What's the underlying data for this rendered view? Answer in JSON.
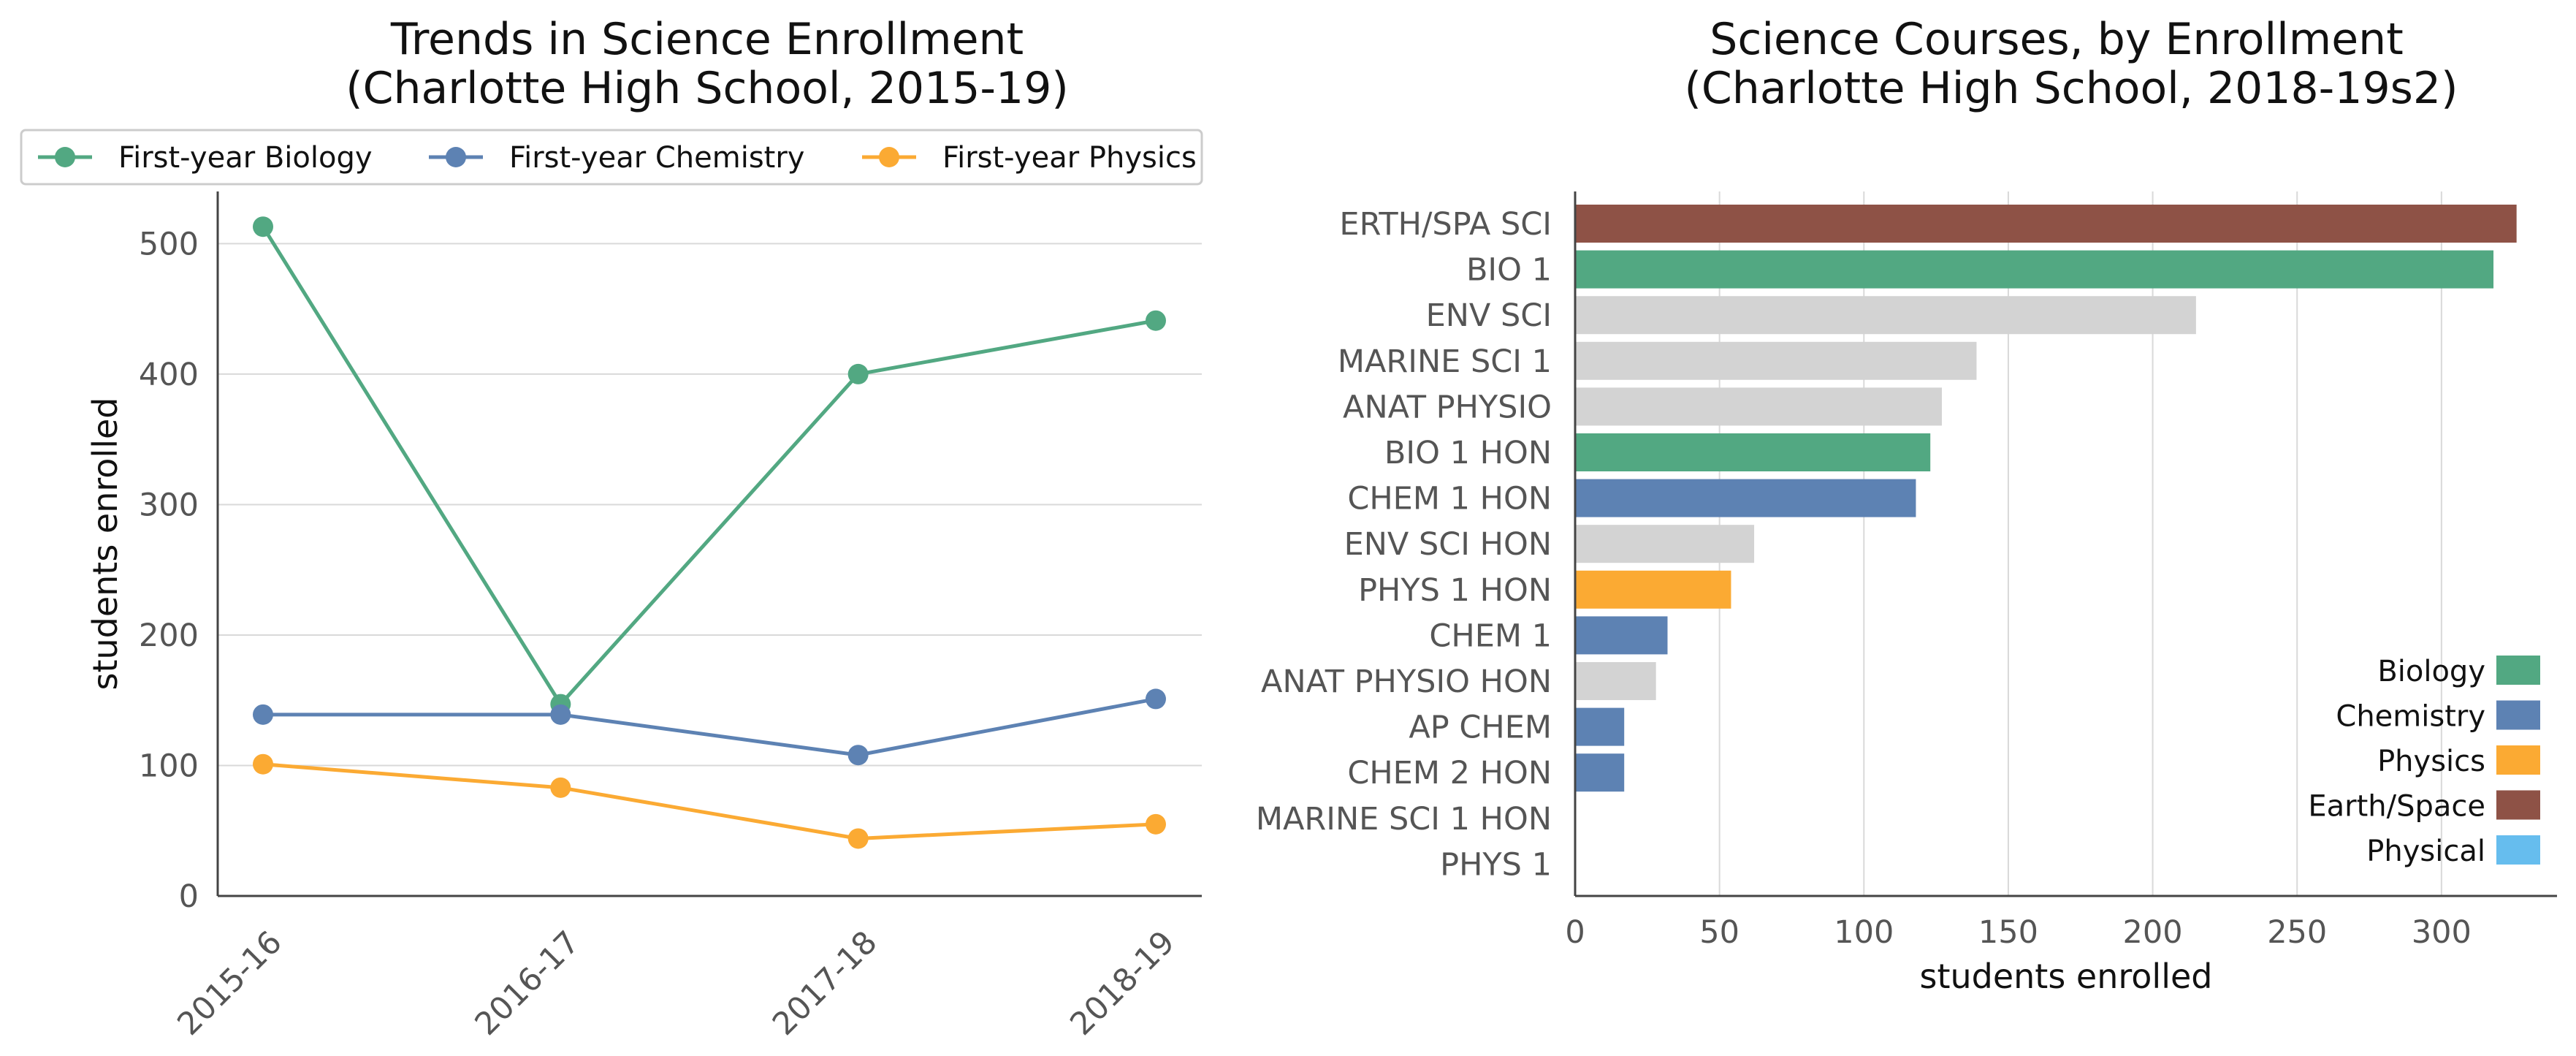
{
  "chart_data": [
    {
      "type": "line",
      "title": "Trends in Science Enrollment",
      "subtitle": "(Charlotte High School, 2015-19)",
      "xlabel": "",
      "ylabel": "students enrolled",
      "categories": [
        "2015-16",
        "2016-17",
        "2017-18",
        "2018-19"
      ],
      "ylim": [
        0,
        540
      ],
      "yticks": [
        0,
        100,
        200,
        300,
        400,
        500
      ],
      "grid": "horizontal",
      "legend_position": "top",
      "series": [
        {
          "name": "First-year Biology",
          "color": "#52a882",
          "values": [
            513,
            147,
            400,
            441
          ]
        },
        {
          "name": "First-year Chemistry",
          "color": "#5d82b3",
          "values": [
            139,
            139,
            108,
            151
          ]
        },
        {
          "name": "First-year Physics",
          "color": "#fbaa33",
          "values": [
            101,
            83,
            44,
            55
          ]
        }
      ]
    },
    {
      "type": "bar",
      "orientation": "horizontal",
      "title": "Science Courses, by Enrollment",
      "subtitle": "(Charlotte High School, 2018-19s2)",
      "xlabel": "students enrolled",
      "ylabel": "",
      "xlim": [
        0,
        340
      ],
      "xticks": [
        0,
        50,
        100,
        150,
        200,
        250,
        300
      ],
      "grid": "vertical",
      "legend_position": "lower-right",
      "categories": [
        "ERTH/SPA SCI",
        "BIO 1",
        "ENV SCI",
        "MARINE SCI 1",
        "ANAT PHYSIO",
        "BIO 1 HON",
        "CHEM 1 HON",
        "ENV SCI HON",
        "PHYS 1 HON",
        "CHEM 1",
        "ANAT PHYSIO HON",
        "AP CHEM",
        "CHEM 2 HON",
        "MARINE SCI 1 HON",
        "PHYS 1"
      ],
      "values": [
        326,
        318,
        215,
        139,
        127,
        123,
        118,
        62,
        54,
        32,
        28,
        17,
        17,
        0,
        0
      ],
      "bar_colors": [
        "#8e5246",
        "#52a882",
        "#d3d3d3",
        "#d3d3d3",
        "#d3d3d3",
        "#52a882",
        "#5d82b3",
        "#d3d3d3",
        "#fbaa33",
        "#5d82b3",
        "#d3d3d3",
        "#5d82b3",
        "#5d82b3",
        "#d3d3d3",
        "#d3d3d3"
      ],
      "legend": [
        {
          "name": "Biology",
          "color": "#52a882"
        },
        {
          "name": "Chemistry",
          "color": "#5d82b3"
        },
        {
          "name": "Physics",
          "color": "#fbaa33"
        },
        {
          "name": "Earth/Space",
          "color": "#8e5246"
        },
        {
          "name": "Physical",
          "color": "#66bdee"
        }
      ]
    }
  ]
}
